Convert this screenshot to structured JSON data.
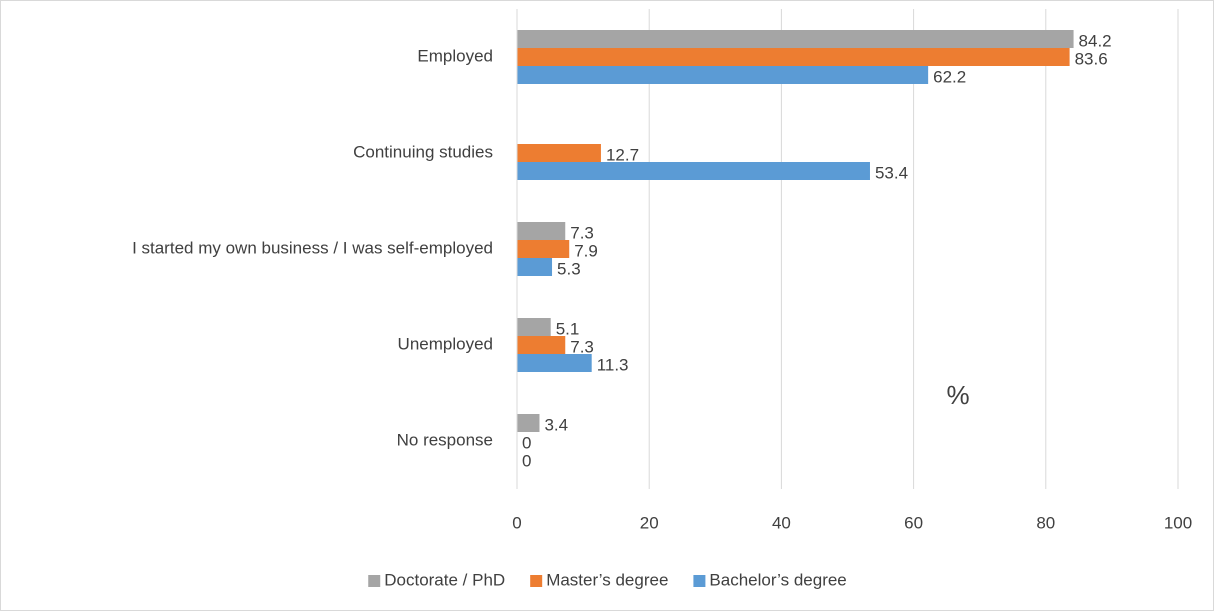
{
  "chart_data": {
    "type": "bar",
    "orientation": "horizontal",
    "categories": [
      "Employed",
      "Continuing studies",
      "I started my own business / I was self-employed",
      "Unemployed",
      "No response"
    ],
    "series": [
      {
        "name": "Doctorate / PhD",
        "color": "#a5a5a5",
        "values": [
          84.2,
          null,
          7.3,
          5.1,
          3.4
        ]
      },
      {
        "name": "Master’s degree",
        "color": "#ed7d31",
        "values": [
          83.6,
          12.7,
          7.9,
          7.3,
          0
        ]
      },
      {
        "name": "Bachelor’s degree",
        "color": "#5b9bd5",
        "values": [
          62.2,
          53.4,
          5.3,
          11.3,
          0
        ]
      }
    ],
    "xlim": [
      0,
      100
    ],
    "xticks": [
      0,
      20,
      40,
      60,
      80,
      100
    ],
    "grid": true,
    "annotation": "%",
    "legend": "bottom"
  }
}
